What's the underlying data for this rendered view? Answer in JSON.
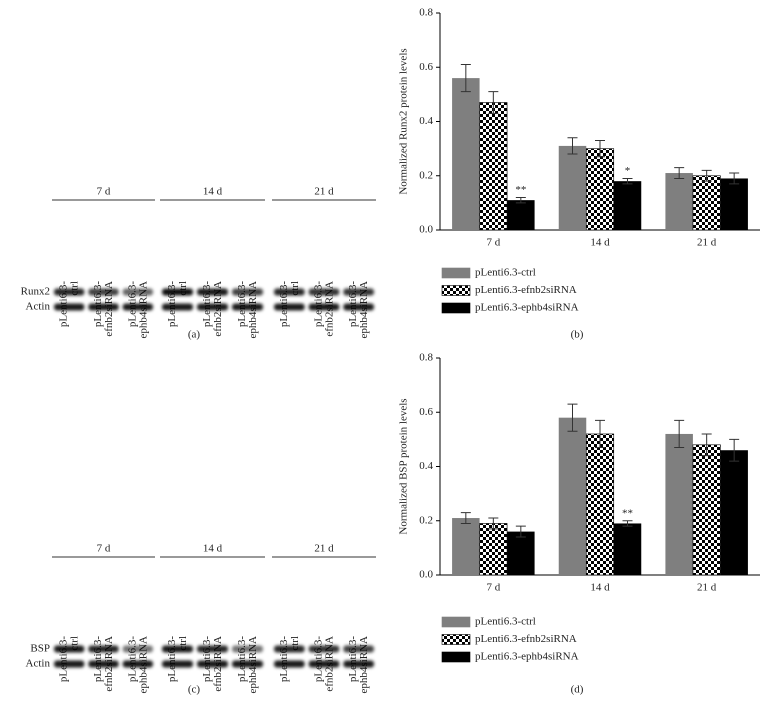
{
  "blots": [
    {
      "groups": [
        "7 d",
        "14 d",
        "21 d"
      ],
      "lanes": [
        [
          "pLenti6.3-",
          "ctrl"
        ],
        [
          "pLenti6.3-",
          "efnb2siRNA"
        ],
        [
          "pLenti6.3-",
          "ephb4siRNA"
        ]
      ],
      "rows": [
        "Runx2",
        "Actin"
      ],
      "panel_label": "(a)"
    },
    {
      "groups": [
        "7 d",
        "14 d",
        "21 d"
      ],
      "lanes": [
        [
          "pLenti6.3-",
          "ctrl"
        ],
        [
          "pLenti6.3-",
          "efnb2siRNA"
        ],
        [
          "pLenti6.3-",
          "ephb4siRNA"
        ]
      ],
      "rows": [
        "BSP",
        "Actin"
      ],
      "panel_label": "(c)"
    }
  ],
  "chart_data": [
    {
      "type": "bar",
      "y_label": "Normalized Runx2 protein levels",
      "panel_label": "(b)",
      "categories": [
        "7 d",
        "14 d",
        "21 d"
      ],
      "ylim": [
        0,
        0.8
      ],
      "yticks": [
        {
          "value": 0,
          "label": "0.0"
        },
        0.2,
        0.4,
        0.6,
        0.8
      ],
      "series": [
        {
          "name": "pLenti6.3-ctrl",
          "color": "#7f7f7f",
          "values": [
            0.56,
            0.31,
            0.21
          ],
          "errors": [
            0.05,
            0.03,
            0.02
          ]
        },
        {
          "name": "pLenti6.3-efnb2siRNA",
          "color": "#000000",
          "pattern": "checker",
          "values": [
            0.47,
            0.3,
            0.2
          ],
          "errors": [
            0.04,
            0.03,
            0.02
          ]
        },
        {
          "name": "pLenti6.3-ephb4siRNA",
          "color": "#000000",
          "values": [
            0.11,
            0.18,
            0.19
          ],
          "errors": [
            0.01,
            0.01,
            0.02
          ],
          "significance": [
            "**",
            "*",
            null
          ]
        }
      ]
    },
    {
      "type": "bar",
      "y_label": "Normalized BSP protein levels",
      "panel_label": "(d)",
      "categories": [
        "7 d",
        "14 d",
        "21 d"
      ],
      "ylim": [
        0,
        0.8
      ],
      "yticks": [
        {
          "value": 0,
          "label": "0.0"
        },
        0.2,
        0.4,
        0.6,
        0.8
      ],
      "series": [
        {
          "name": "pLenti6.3-ctrl",
          "color": "#7f7f7f",
          "values": [
            0.21,
            0.58,
            0.52
          ],
          "errors": [
            0.02,
            0.05,
            0.05
          ]
        },
        {
          "name": "pLenti6.3-efnb2siRNA",
          "color": "#000000",
          "pattern": "checker",
          "values": [
            0.19,
            0.52,
            0.48
          ],
          "errors": [
            0.02,
            0.05,
            0.04
          ]
        },
        {
          "name": "pLenti6.3-ephb4siRNA",
          "color": "#000000",
          "values": [
            0.16,
            0.19,
            0.46
          ],
          "errors": [
            0.02,
            0.01,
            0.04
          ],
          "significance": [
            null,
            "**",
            null
          ]
        }
      ]
    }
  ]
}
